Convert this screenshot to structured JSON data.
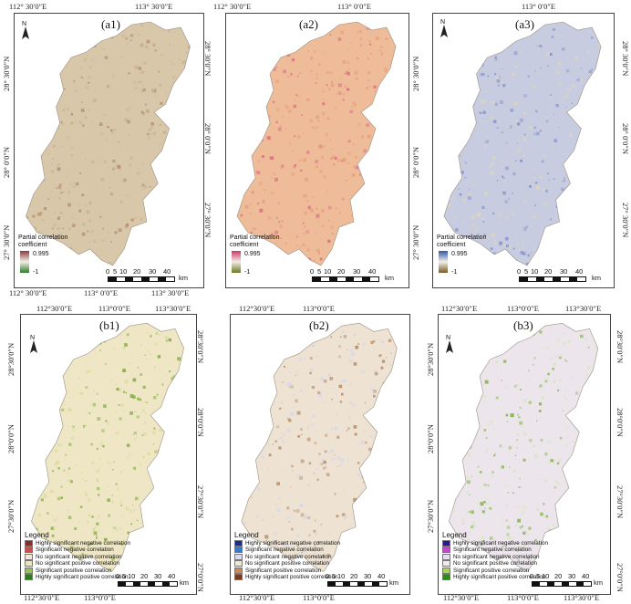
{
  "top_row": {
    "panels": [
      {
        "id": "a1",
        "title": "(a1)",
        "cbar_colors": [
          "#8a3c3c",
          "#f3efe6",
          "#2f7d2a"
        ]
      },
      {
        "id": "a2",
        "title": "(a2)",
        "cbar_colors": [
          "#c83a6a",
          "#f3ece0",
          "#6a7a25"
        ]
      },
      {
        "id": "a3",
        "title": "(a3)",
        "cbar_colors": [
          "#3355a8",
          "#f2efe7",
          "#7a5a25"
        ]
      }
    ],
    "top_lon_labels": [
      "112° 30′0″E",
      "113° 30′0″E"
    ],
    "top_lon_labels_a2": [
      "112° 30′0″E",
      "113° 0′0″E"
    ],
    "top_lon_labels_a3": [
      "113° 0′0″E"
    ],
    "bottom_lon_labels": [
      "112° 30′0″E",
      "113° 0′0″E",
      "113° 30′0″E"
    ],
    "lat_labels": [
      "28° 30′0″N",
      "28° 0′0″N",
      "27° 30′0″N"
    ],
    "legend_title": "Partial correlation coefficient",
    "legend_max": "0.995",
    "legend_min": "-1",
    "scale_numbers": [
      "0",
      "5",
      "10",
      "20",
      "30",
      "40"
    ],
    "scale_unit": "km",
    "north_label": "N"
  },
  "bottom_row": {
    "panels": [
      {
        "id": "b1",
        "title": "(b1)"
      },
      {
        "id": "b2",
        "title": "(b2)"
      },
      {
        "id": "b3",
        "title": "(b3)"
      }
    ],
    "top_lon_labels": [
      "112°30′0″E",
      "113°0′0″E",
      "113°30′0″E"
    ],
    "bottom_lon_labels": [
      "112°30′0″E",
      "113°0′0″E",
      "113°30′0″E"
    ],
    "lat_labels": [
      "28°30′0″N",
      "28°0′0″N",
      "27°30′0″N",
      "27°0′0″N"
    ],
    "legend_title": "Legend",
    "legend_items": [
      "Highly significant negative correlation",
      "Significant negative correlation",
      "No significant negative correlation",
      "No significant positive correlation",
      "Significant positive correlation",
      "Highly significant positive correlation"
    ],
    "legend_colors": {
      "b1": [
        "#8a2a2a",
        "#c8504a",
        "#f2e6dc",
        "#ece6b8",
        "#9ac05a",
        "#2f7a1e"
      ],
      "b2": [
        "#1a2f8a",
        "#3b78c8",
        "#d8dcf0",
        "#f0e6d6",
        "#c88a5a",
        "#7a3a1a"
      ],
      "b3": [
        "#2a1a8a",
        "#c04ac8",
        "#e6dcf0",
        "#f0ece4",
        "#a8d45a",
        "#2f8a1e"
      ]
    },
    "scale_numbers": [
      "0",
      "5",
      "10",
      "20",
      "30",
      "40"
    ],
    "scale_unit": "km",
    "north_label": "N"
  },
  "map_colors": {
    "a1": {
      "base": "#d9c7aa",
      "spot": "#b08a6a",
      "spot2": "#c9b494"
    },
    "a2": {
      "base": "#eebc98",
      "spot": "#d9677f",
      "spot2": "#e8a07e"
    },
    "a3": {
      "base": "#c8cce0",
      "spot": "#7c8cc8",
      "spot2": "#e0d6b8"
    },
    "b1": {
      "base": "#eee6c4",
      "spot": "#7aa83a",
      "spot2": "#d6dd9a"
    },
    "b2": {
      "base": "#eee2d2",
      "spot": "#b08462",
      "spot2": "#d4d6ec"
    },
    "b3": {
      "base": "#ece6ec",
      "spot": "#7aaf3a",
      "spot2": "#d6e6c0"
    }
  }
}
